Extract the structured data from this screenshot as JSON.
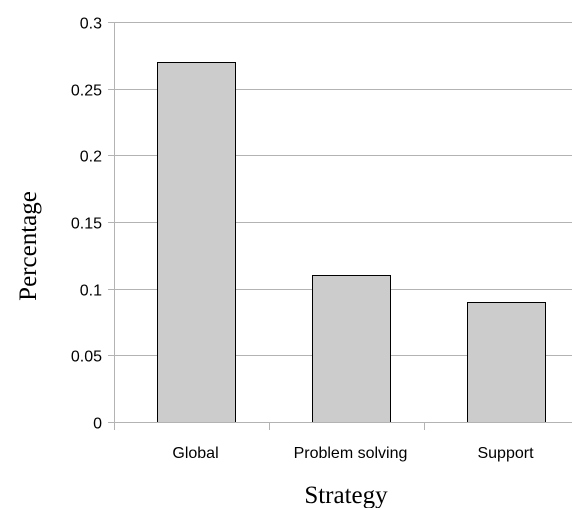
{
  "chart_data": {
    "type": "bar",
    "categories": [
      "Global",
      "Problem solving",
      "Support"
    ],
    "values": [
      0.27,
      0.11,
      0.09
    ],
    "xlabel": "Strategy",
    "ylabel": "Percentage",
    "ylim": [
      0,
      0.3
    ],
    "yticks": [
      "0",
      "0.05",
      "0.1",
      "0.15",
      "0.2",
      "0.25",
      "0.3"
    ],
    "grid": true,
    "bar_color": "#cccccc",
    "bar_edge_color": "#000000",
    "grid_color": "#b3b3b3"
  }
}
